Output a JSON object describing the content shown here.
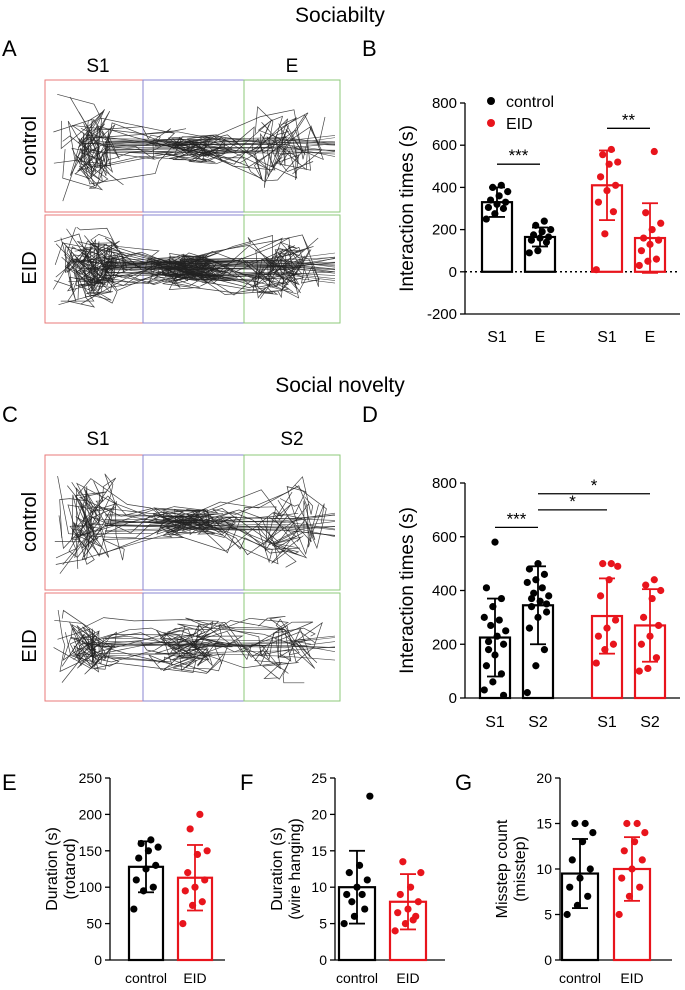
{
  "figure": {
    "section_titles": {
      "sociability": "Sociabilty",
      "novelty": "Social novelty"
    },
    "panel_letters": {
      "A": "A",
      "B": "B",
      "C": "C",
      "D": "D",
      "E": "E",
      "F": "F",
      "G": "G"
    },
    "panel_A": {
      "chamber_left": "S1",
      "chamber_right": "E",
      "row_control": "control",
      "row_eid": "EID"
    },
    "panel_C": {
      "chamber_left": "S1",
      "chamber_right": "S2",
      "row_control": "control",
      "row_eid": "EID"
    },
    "colors": {
      "control": "#000000",
      "eid": "#e8141c",
      "chamber_left": "#e87a7a",
      "chamber_mid": "#8a86d2",
      "chamber_right": "#8cc87a"
    }
  },
  "chart_data": [
    {
      "id": "B",
      "type": "bar",
      "ylabel": "Interaction times (s)",
      "ylim": [
        -200,
        800
      ],
      "yticks": [
        "-200",
        "0",
        "200",
        "400",
        "600",
        "800"
      ],
      "zero_line": "dotted",
      "legend": [
        {
          "label": "control",
          "group": "control"
        },
        {
          "label": "EID",
          "group": "eid"
        }
      ],
      "bars": [
        {
          "label": "S1",
          "group": "control",
          "mean": 330,
          "sd": 70,
          "points": [
            250,
            275,
            300,
            305,
            320,
            330,
            340,
            360,
            380,
            400,
            410
          ]
        },
        {
          "label": "E",
          "group": "control",
          "mean": 165,
          "sd": 45,
          "points": [
            90,
            100,
            140,
            150,
            160,
            165,
            175,
            190,
            200,
            220,
            240
          ]
        },
        {
          "label": "S1",
          "group": "eid",
          "mean": 410,
          "sd": 165,
          "points": [
            10,
            180,
            285,
            330,
            385,
            410,
            450,
            510,
            520,
            555,
            580
          ]
        },
        {
          "label": "E",
          "group": "eid",
          "mean": 160,
          "sd": 165,
          "points": [
            30,
            50,
            60,
            100,
            130,
            150,
            160,
            200,
            230,
            280,
            570
          ]
        }
      ],
      "significance": [
        {
          "from": 0,
          "to": 1,
          "y": 510,
          "text": "***"
        },
        {
          "from": 2,
          "to": 3,
          "y": 680,
          "text": "**"
        }
      ]
    },
    {
      "id": "D",
      "type": "bar",
      "ylabel": "Interaction times (s)",
      "ylim": [
        0,
        800
      ],
      "yticks": [
        "0",
        "200",
        "400",
        "600",
        "800"
      ],
      "bars": [
        {
          "label": "S1",
          "group": "control",
          "mean": 225,
          "sd": 145,
          "points": [
            30,
            60,
            90,
            120,
            160,
            200,
            210,
            230,
            250,
            270,
            290,
            300,
            340,
            370,
            410,
            580,
            10,
            180
          ]
        },
        {
          "label": "S2",
          "group": "control",
          "mean": 345,
          "sd": 145,
          "points": [
            20,
            120,
            180,
            260,
            300,
            320,
            340,
            360,
            380,
            390,
            410,
            430,
            440,
            460,
            480,
            500,
            350,
            370
          ]
        },
        {
          "label": "S1",
          "group": "eid",
          "mean": 305,
          "sd": 140,
          "points": [
            130,
            180,
            200,
            230,
            260,
            290,
            380,
            440,
            490,
            500,
            500
          ]
        },
        {
          "label": "S2",
          "group": "eid",
          "mean": 270,
          "sd": 135,
          "points": [
            100,
            110,
            150,
            200,
            230,
            270,
            300,
            370,
            400,
            420,
            440
          ]
        }
      ],
      "significance": [
        {
          "from": 0,
          "to": 1,
          "y": 635,
          "text": "***"
        },
        {
          "from": 1,
          "to": 2,
          "y": 700,
          "text": "*"
        },
        {
          "from": 1,
          "to": 3,
          "y": 760,
          "text": "*"
        }
      ]
    },
    {
      "id": "E",
      "type": "bar",
      "ylabel_lines": [
        "Duration (s)",
        "(rotarod)"
      ],
      "ylim": [
        0,
        250
      ],
      "yticks": [
        "0",
        "50",
        "100",
        "150",
        "200",
        "250"
      ],
      "bars": [
        {
          "label": "control",
          "group": "control",
          "mean": 128,
          "sd": 35,
          "points": [
            70,
            95,
            100,
            110,
            125,
            130,
            140,
            150,
            155,
            160,
            165
          ]
        },
        {
          "label": "EID",
          "group": "eid",
          "mean": 113,
          "sd": 45,
          "points": [
            50,
            75,
            80,
            95,
            100,
            110,
            120,
            145,
            150,
            180,
            200
          ]
        }
      ]
    },
    {
      "id": "F",
      "type": "bar",
      "ylabel_lines": [
        "Duration (s)",
        "(wire hanging)"
      ],
      "ylim": [
        0,
        25
      ],
      "yticks": [
        "0",
        "5",
        "10",
        "15",
        "20",
        "25"
      ],
      "bars": [
        {
          "label": "control",
          "group": "control",
          "mean": 10,
          "sd": 5,
          "points": [
            5,
            6,
            7,
            9,
            10,
            11,
            12,
            13,
            22.5,
            8,
            9
          ]
        },
        {
          "label": "EID",
          "group": "eid",
          "mean": 8,
          "sd": 3.8,
          "points": [
            4,
            5,
            6,
            6.5,
            7,
            8,
            9,
            10,
            12,
            13.5,
            5.5
          ]
        }
      ]
    },
    {
      "id": "G",
      "type": "bar",
      "ylabel_lines": [
        "Misstep count",
        "(misstep)"
      ],
      "ylim": [
        0,
        20
      ],
      "yticks": [
        "0",
        "5",
        "10",
        "15",
        "20"
      ],
      "bars": [
        {
          "label": "control",
          "group": "control",
          "mean": 9.5,
          "sd": 3.8,
          "points": [
            5,
            6,
            7,
            8,
            9,
            10,
            11,
            13,
            14,
            15,
            15
          ]
        },
        {
          "label": "EID",
          "group": "eid",
          "mean": 10,
          "sd": 3.5,
          "points": [
            5,
            7,
            8,
            9,
            10,
            11,
            12,
            13,
            14,
            15,
            15
          ]
        }
      ]
    }
  ]
}
